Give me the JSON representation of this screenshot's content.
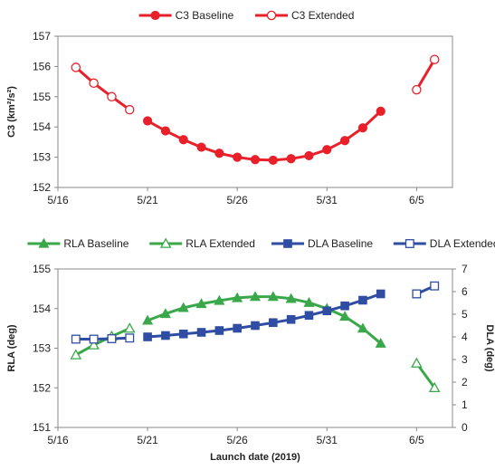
{
  "chart_data": [
    {
      "type": "line",
      "title": "",
      "xlabel": "",
      "ylabel": "C3 (km²/s²)",
      "ylim": [
        152,
        157
      ],
      "yticks": [
        "152",
        "153",
        "154",
        "155",
        "156",
        "157"
      ],
      "xticks": [
        "5/16",
        "5/21",
        "5/26",
        "5/31",
        "6/5"
      ],
      "grid": false,
      "legend_position": "top",
      "series": [
        {
          "name": "C3 Baseline",
          "color": "#e8202a",
          "marker": "filled-circle",
          "points": [
            [
              21,
              154.2
            ],
            [
              22,
              153.87
            ],
            [
              23,
              153.58
            ],
            [
              24,
              153.33
            ],
            [
              25,
              153.13
            ],
            [
              26,
              153.0
            ],
            [
              27,
              152.92
            ],
            [
              28,
              152.9
            ],
            [
              29,
              152.95
            ],
            [
              30,
              153.05
            ],
            [
              31,
              153.25
            ],
            [
              32,
              153.55
            ],
            [
              33,
              153.97
            ],
            [
              34,
              154.52
            ]
          ]
        },
        {
          "name": "C3 Extended",
          "color": "#e8202a",
          "marker": "open-circle",
          "segments": [
            [
              [
                17,
                155.97
              ],
              [
                18,
                155.45
              ],
              [
                19,
                155.0
              ],
              [
                20,
                154.57
              ]
            ],
            [
              [
                36,
                155.23
              ],
              [
                37,
                156.23
              ]
            ]
          ]
        }
      ]
    },
    {
      "type": "line",
      "title": "",
      "xlabel": "Launch date (2019)",
      "ylabel": "RLA (deg)",
      "ylabel_right": "DLA (deg)",
      "ylim": [
        151,
        155
      ],
      "ylim_right": [
        0,
        7
      ],
      "yticks": [
        "151",
        "152",
        "153",
        "154",
        "155"
      ],
      "yticks_right": [
        "0",
        "1",
        "2",
        "3",
        "4",
        "5",
        "6",
        "7"
      ],
      "xticks": [
        "5/16",
        "5/21",
        "5/26",
        "5/31",
        "6/5"
      ],
      "grid": false,
      "legend_position": "top",
      "series": [
        {
          "name": "RLA Baseline",
          "color": "#3aa84a",
          "marker": "filled-triangle",
          "axis": "left",
          "points": [
            [
              21,
              153.7
            ],
            [
              22,
              153.87
            ],
            [
              23,
              154.02
            ],
            [
              24,
              154.12
            ],
            [
              25,
              154.2
            ],
            [
              26,
              154.27
            ],
            [
              27,
              154.3
            ],
            [
              28,
              154.3
            ],
            [
              29,
              154.25
            ],
            [
              30,
              154.15
            ],
            [
              31,
              154.0
            ],
            [
              32,
              153.8
            ],
            [
              33,
              153.5
            ],
            [
              34,
              153.12
            ]
          ]
        },
        {
          "name": "RLA Extended",
          "color": "#3aa84a",
          "marker": "open-triangle",
          "axis": "left",
          "segments": [
            [
              [
                17,
                152.83
              ],
              [
                18,
                153.08
              ],
              [
                19,
                153.3
              ],
              [
                20,
                153.5
              ]
            ],
            [
              [
                36,
                152.62
              ],
              [
                37,
                152.0
              ]
            ]
          ]
        },
        {
          "name": "DLA Baseline",
          "color": "#2f4da3",
          "marker": "filled-square",
          "axis": "right",
          "points": [
            [
              21,
              4.0
            ],
            [
              22,
              4.06
            ],
            [
              23,
              4.13
            ],
            [
              24,
              4.2
            ],
            [
              25,
              4.28
            ],
            [
              26,
              4.38
            ],
            [
              27,
              4.5
            ],
            [
              28,
              4.63
            ],
            [
              29,
              4.77
            ],
            [
              30,
              4.95
            ],
            [
              31,
              5.15
            ],
            [
              32,
              5.37
            ],
            [
              33,
              5.62
            ],
            [
              34,
              5.9
            ]
          ]
        },
        {
          "name": "DLA Extended",
          "color": "#2f4da3",
          "marker": "open-square",
          "axis": "right",
          "segments": [
            [
              [
                17,
                3.9
              ],
              [
                18,
                3.9
              ],
              [
                19,
                3.92
              ],
              [
                20,
                3.95
              ]
            ],
            [
              [
                36,
                5.9
              ],
              [
                37,
                6.25
              ]
            ]
          ]
        }
      ]
    }
  ]
}
